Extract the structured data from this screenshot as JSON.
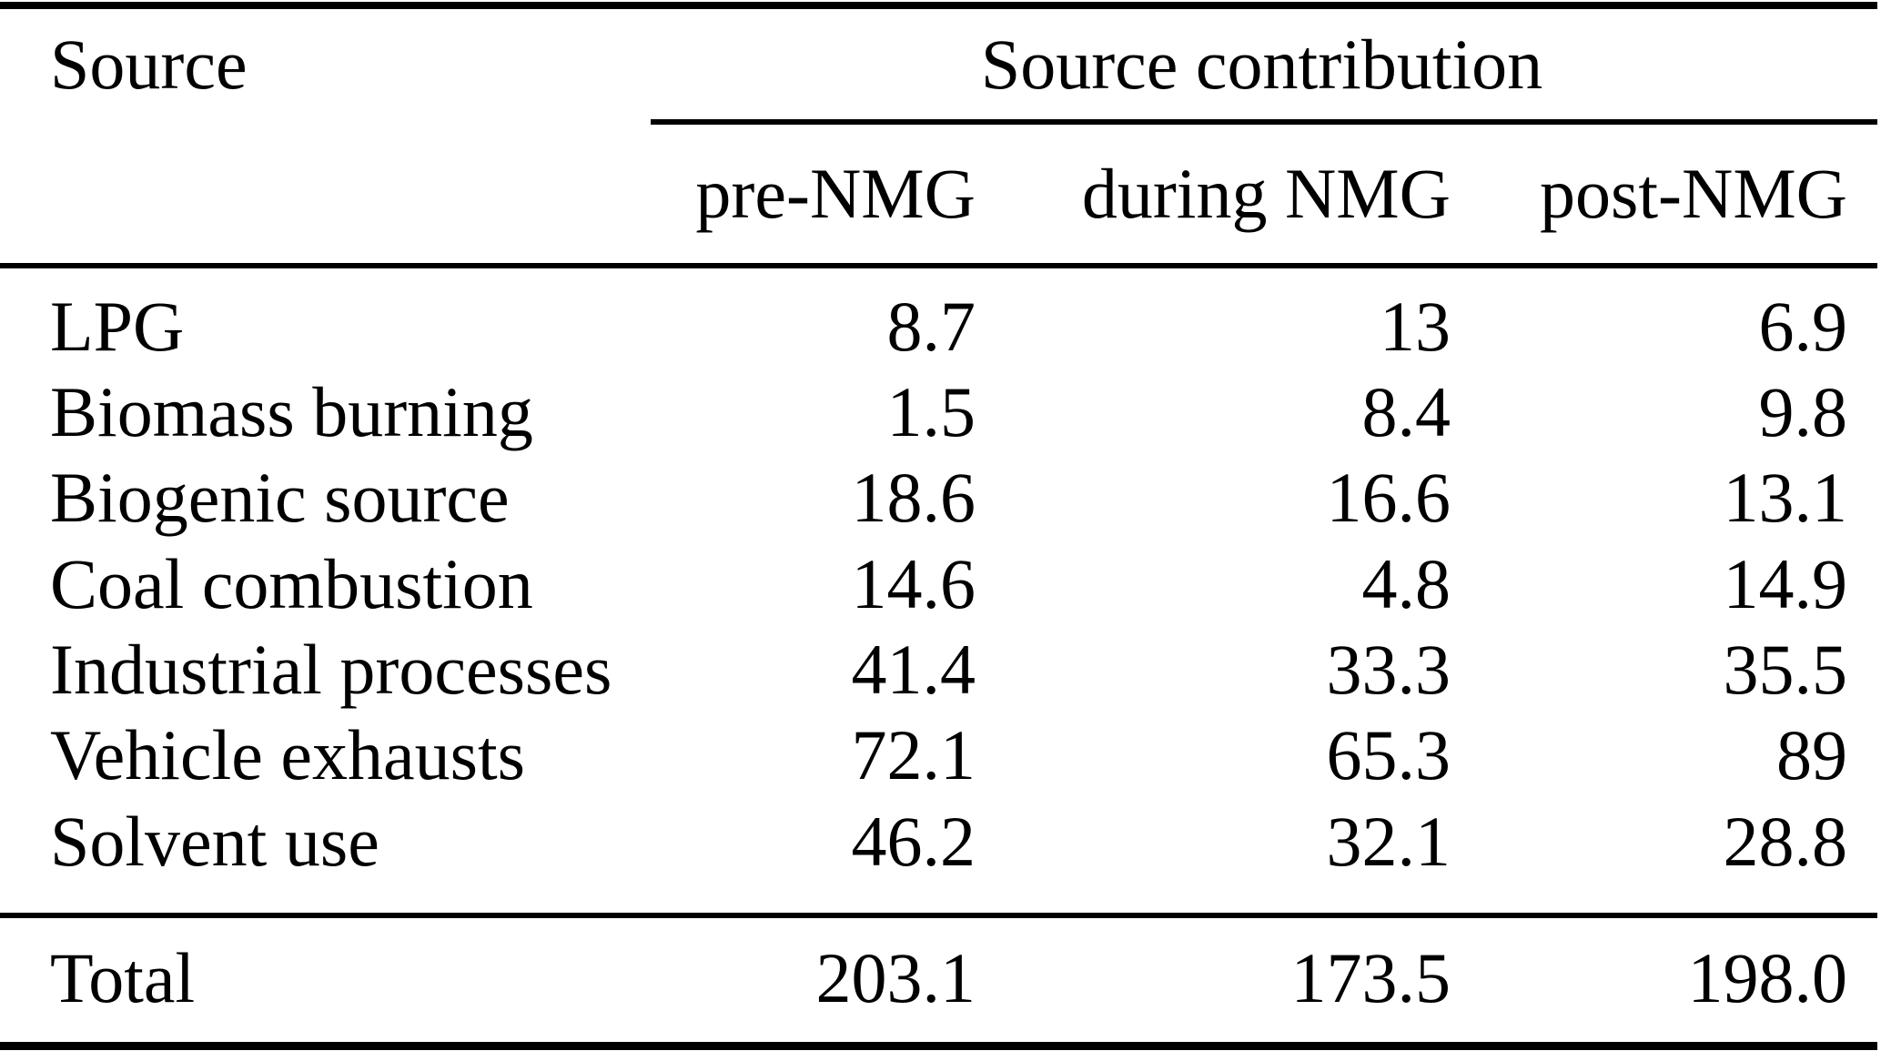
{
  "table": {
    "col_header_left": "Source",
    "group_header": "Source contribution",
    "sub_headers": [
      "pre-NMG",
      "during NMG",
      "post-NMG"
    ],
    "rows": [
      {
        "label": "LPG",
        "values": [
          "8.7",
          "13",
          "6.9"
        ]
      },
      {
        "label": "Biomass burning",
        "values": [
          "1.5",
          "8.4",
          "9.8"
        ]
      },
      {
        "label": "Biogenic source",
        "values": [
          "18.6",
          "16.6",
          "13.1"
        ]
      },
      {
        "label": "Coal combustion",
        "values": [
          "14.6",
          "4.8",
          "14.9"
        ]
      },
      {
        "label": "Industrial processes",
        "values": [
          "41.4",
          "33.3",
          "35.5"
        ]
      },
      {
        "label": "Vehicle exhausts",
        "values": [
          "72.1",
          "65.3",
          "89"
        ]
      },
      {
        "label": "Solvent use",
        "values": [
          "46.2",
          "32.1",
          "28.8"
        ]
      }
    ],
    "total_row": {
      "label": "Total",
      "values": [
        "203.1",
        "173.5",
        "198.0"
      ]
    }
  },
  "chart_data": {
    "type": "table",
    "title": "Source contribution",
    "columns": [
      "Source",
      "pre-NMG",
      "during NMG",
      "post-NMG"
    ],
    "rows": [
      [
        "LPG",
        8.7,
        13,
        6.9
      ],
      [
        "Biomass burning",
        1.5,
        8.4,
        9.8
      ],
      [
        "Biogenic source",
        18.6,
        16.6,
        13.1
      ],
      [
        "Coal combustion",
        14.6,
        4.8,
        14.9
      ],
      [
        "Industrial processes",
        41.4,
        33.3,
        35.5
      ],
      [
        "Vehicle exhausts",
        72.1,
        65.3,
        89
      ],
      [
        "Solvent use",
        46.2,
        32.1,
        28.8
      ],
      [
        "Total",
        203.1,
        173.5,
        198.0
      ]
    ]
  },
  "colors": {
    "background": "#ffffff",
    "text": "#000000",
    "rule": "#000000"
  }
}
